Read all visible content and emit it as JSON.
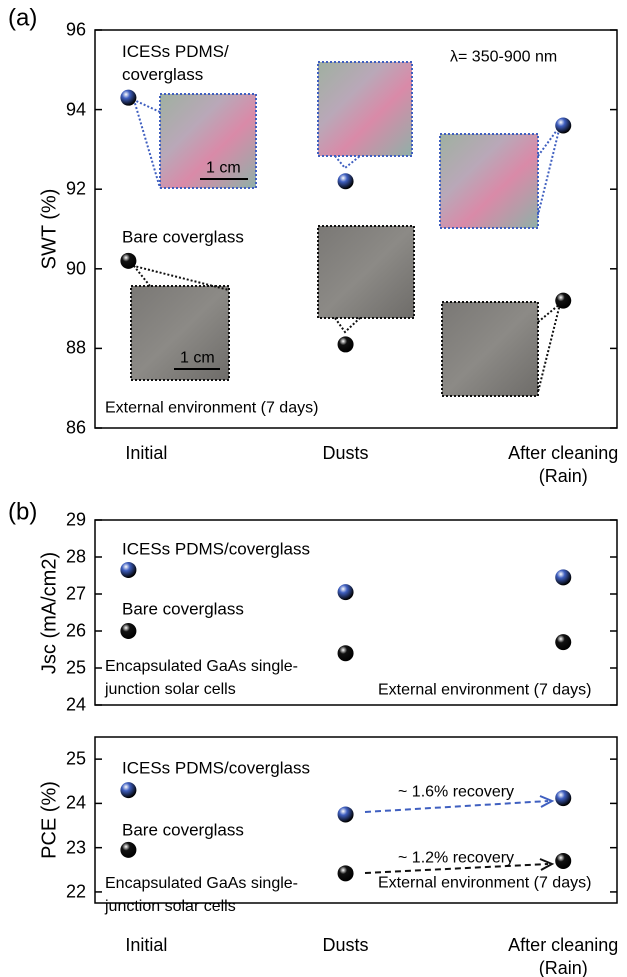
{
  "chart_data": [
    {
      "type": "dot",
      "panel_label": "(a)",
      "y_label": "SWT (%)",
      "categories": [
        "Initial",
        "Dusts",
        "After cleaning (Rain)"
      ],
      "series": [
        {
          "name": "ICESs PDMS/ coverglass",
          "color": "#3f5fc0",
          "values": [
            94.3,
            92.2,
            93.6
          ]
        },
        {
          "name": "Bare coverglass",
          "color": "#111111",
          "values": [
            90.2,
            88.1,
            89.2
          ]
        }
      ],
      "ylim": [
        86,
        96
      ],
      "yticks": [
        86,
        88,
        90,
        92,
        94,
        96
      ],
      "annotations": [
        "λ= 350-900 nm",
        "External environment (7 days)",
        "1 cm",
        "1 cm"
      ]
    },
    {
      "type": "dot",
      "panel_label": "(b)",
      "y_label": "Jsc (mA/cm2)",
      "categories": [
        null,
        null,
        null
      ],
      "series": [
        {
          "name": "ICESs PDMS/coverglass",
          "color": "#3f5fc0",
          "values": [
            27.65,
            27.05,
            27.45
          ]
        },
        {
          "name": "Bare coverglass",
          "color": "#111111",
          "values": [
            26.0,
            25.4,
            25.7
          ]
        }
      ],
      "ylim": [
        24,
        29
      ],
      "yticks": [
        24,
        25,
        26,
        27,
        28,
        29
      ],
      "annotations": [
        "Encapsulated GaAs single-junction solar cells",
        "External environment (7 days)"
      ]
    },
    {
      "type": "dot",
      "y_label": "PCE (%)",
      "categories": [
        "Initial",
        "Dusts",
        "After cleaning (Rain)"
      ],
      "series": [
        {
          "name": "ICESs PDMS/coverglass",
          "color": "#3f5fc0",
          "values": [
            24.3,
            23.75,
            24.12
          ]
        },
        {
          "name": "Bare coverglass",
          "color": "#111111",
          "values": [
            22.95,
            22.42,
            22.7
          ]
        }
      ],
      "ylim": [
        21.75,
        25.5
      ],
      "yticks": [
        22,
        23,
        24,
        25
      ],
      "annotations": [
        "Encapsulated GaAs single-junction solar cells",
        "External environment (7 days)",
        "~ 1.6%  recovery",
        "~ 1.2%  recovery"
      ]
    }
  ]
}
